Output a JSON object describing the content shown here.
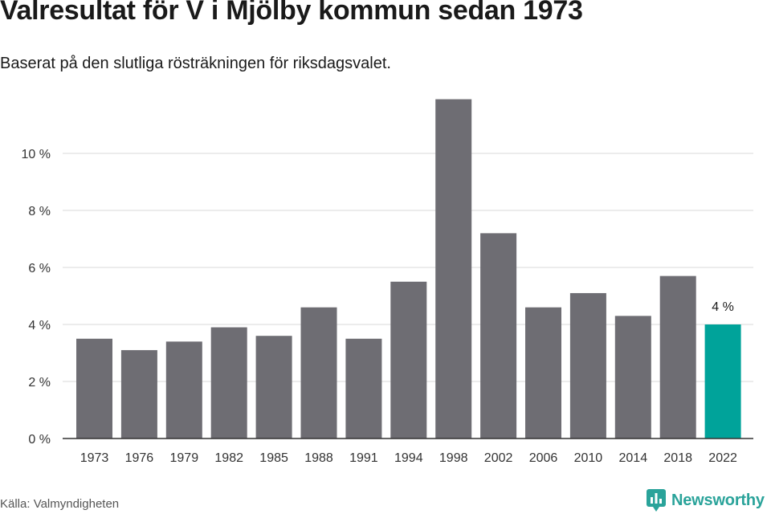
{
  "header": {
    "title": "Valresultat för V i Mjölby kommun sedan 1973",
    "subtitle": "Baserat på den slutliga rösträkningen för riksdagsvalet."
  },
  "footer": {
    "source": "Källa: Valmyndigheten",
    "brand": "Newsworthy",
    "brand_icon": "newsworthy-logo-icon"
  },
  "colors": {
    "bar": "#6e6d73",
    "highlight": "#00a39a",
    "grid": "#d9d9d9",
    "axis": "#333333",
    "brand": "#2aa39a"
  },
  "chart_data": {
    "type": "bar",
    "categories": [
      "1973",
      "1976",
      "1979",
      "1982",
      "1985",
      "1988",
      "1991",
      "1994",
      "1998",
      "2002",
      "2006",
      "2010",
      "2014",
      "2018",
      "2022"
    ],
    "values": [
      3.5,
      3.1,
      3.4,
      3.9,
      3.6,
      4.6,
      3.5,
      5.5,
      11.9,
      7.2,
      4.6,
      5.1,
      4.3,
      5.7,
      4.0
    ],
    "highlight_index": 14,
    "highlight_label": "4 %",
    "ylim": [
      0,
      12
    ],
    "yticks": [
      {
        "value": 0,
        "label": "0 %"
      },
      {
        "value": 2,
        "label": "2 %"
      },
      {
        "value": 4,
        "label": "4 %"
      },
      {
        "value": 6,
        "label": "6 %"
      },
      {
        "value": 8,
        "label": "8 %"
      },
      {
        "value": 10,
        "label": "10 %"
      }
    ],
    "grid": true,
    "legend": "none"
  }
}
